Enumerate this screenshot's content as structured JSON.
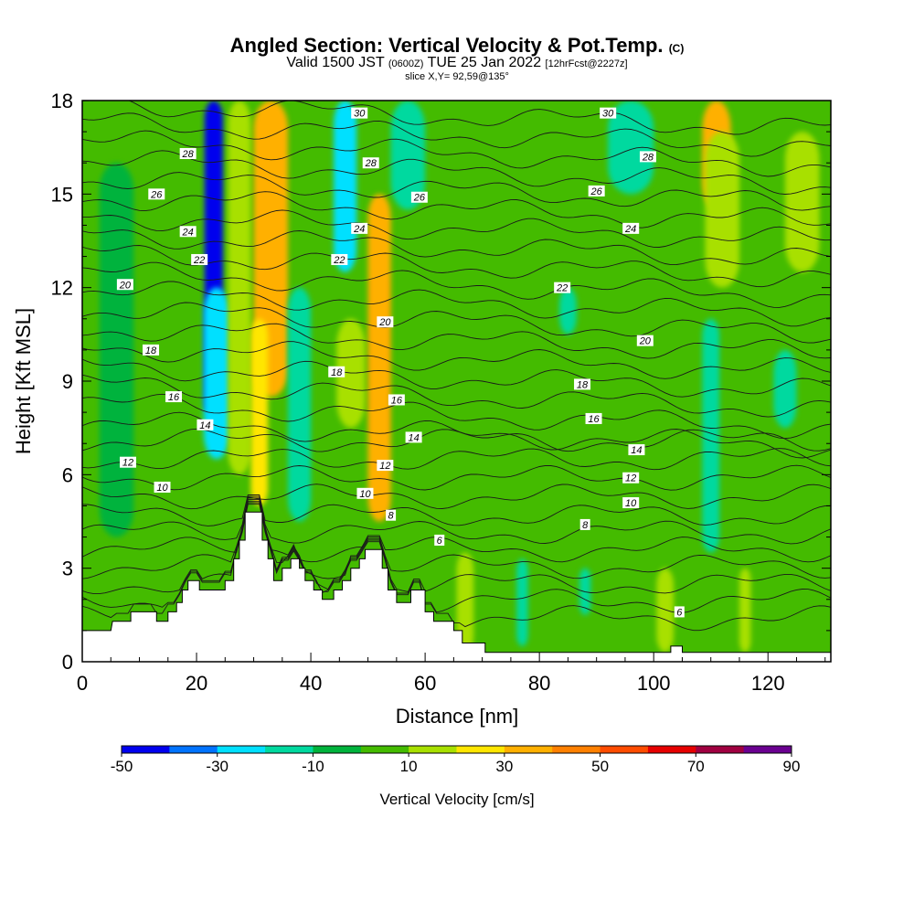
{
  "header": {
    "title": "Angled Section: Vertical Velocity & Pot.Temp.",
    "title_mark": "(C)",
    "valid_prefix": "Valid 1500 JST",
    "valid_utc": "(0600Z)",
    "valid_date": "TUE 25 Jan 2022",
    "forecast": "[12hrFcst@2227z]",
    "slice": "slice X,Y= 92,59@135°"
  },
  "chart_data": {
    "type": "heatmap",
    "xlabel": "Distance [nm]",
    "ylabel": "Height [Kft MSL]",
    "xlim": [
      0,
      131
    ],
    "ylim": [
      0,
      18
    ],
    "x_ticks": [
      0,
      20,
      40,
      60,
      80,
      100,
      120
    ],
    "y_ticks": [
      0,
      3,
      6,
      9,
      12,
      15,
      18
    ],
    "colorbar": {
      "label": "Vertical Velocity [cm/s]",
      "ticks": [
        -50,
        -30,
        -10,
        10,
        30,
        50,
        70,
        90
      ],
      "bins": [
        -50,
        -40,
        -30,
        -20,
        -10,
        0,
        10,
        20,
        30,
        40,
        50,
        60,
        70,
        80,
        90
      ],
      "colors": [
        "#0000ee",
        "#0073ff",
        "#00e0ff",
        "#00d99f",
        "#00b33c",
        "#44bb00",
        "#a8e000",
        "#ffe600",
        "#ffb000",
        "#ff8000",
        "#ff4c00",
        "#e60000",
        "#a00040",
        "#6a0090"
      ]
    },
    "background_color": "#44bb00",
    "velocity_features": [
      {
        "x": 23,
        "y1": 7.8,
        "y2": 18,
        "w": 3.2,
        "v": -45
      },
      {
        "x": 23.5,
        "y1": 6.5,
        "y2": 12,
        "w": 4.5,
        "v": -25
      },
      {
        "x": 27.5,
        "y1": 6.0,
        "y2": 18,
        "w": 4,
        "v": 15
      },
      {
        "x": 33,
        "y1": 8.5,
        "y2": 18,
        "w": 6,
        "v": 35
      },
      {
        "x": 31,
        "y1": 5.0,
        "y2": 11,
        "w": 3,
        "v": 25
      },
      {
        "x": 38,
        "y1": 4.5,
        "y2": 12,
        "w": 4,
        "v": -15
      },
      {
        "x": 46,
        "y1": 12.5,
        "y2": 18,
        "w": 4,
        "v": -30
      },
      {
        "x": 47,
        "y1": 7.5,
        "y2": 11,
        "w": 5,
        "v": 15
      },
      {
        "x": 52,
        "y1": 7.0,
        "y2": 12.5,
        "w": 2.2,
        "v": 65
      },
      {
        "x": 52,
        "y1": 4.5,
        "y2": 15,
        "w": 4,
        "v": 35
      },
      {
        "x": 57,
        "y1": 14.5,
        "y2": 18,
        "w": 6,
        "v": -15
      },
      {
        "x": 6,
        "y1": 4.0,
        "y2": 16,
        "w": 6,
        "v": -5
      },
      {
        "x": 111,
        "y1": 14.5,
        "y2": 18,
        "w": 5,
        "v": 30
      },
      {
        "x": 112,
        "y1": 12,
        "y2": 17,
        "w": 6,
        "v": 15
      },
      {
        "x": 126,
        "y1": 12.5,
        "y2": 17,
        "w": 6,
        "v": 15
      },
      {
        "x": 96,
        "y1": 15,
        "y2": 18,
        "w": 8,
        "v": -15
      },
      {
        "x": 110,
        "y1": 3.5,
        "y2": 11,
        "w": 3,
        "v": -15
      },
      {
        "x": 123,
        "y1": 7.5,
        "y2": 10,
        "w": 4,
        "v": -15
      },
      {
        "x": 85,
        "y1": 10.5,
        "y2": 12,
        "w": 3,
        "v": -15
      },
      {
        "x": 67,
        "y1": 0.3,
        "y2": 3.5,
        "w": 3,
        "v": 15
      },
      {
        "x": 88,
        "y1": 1.5,
        "y2": 3.0,
        "w": 2,
        "v": -15
      },
      {
        "x": 102,
        "y1": 0.3,
        "y2": 3,
        "w": 3,
        "v": 15
      },
      {
        "x": 116,
        "y1": 0.3,
        "y2": 3,
        "w": 2,
        "v": 15
      },
      {
        "x": 77,
        "y1": 0.5,
        "y2": 3.3,
        "w": 2,
        "v": -15
      }
    ],
    "isotherm_levels": [
      2,
      3,
      4,
      5,
      6,
      7,
      8,
      9,
      10,
      11,
      12,
      13,
      14,
      15,
      16,
      17,
      18,
      19,
      20,
      21,
      22,
      23,
      24,
      25,
      26,
      27,
      28,
      29,
      30
    ],
    "isotherm_labels": [
      {
        "text": "30",
        "x": 48.5,
        "y": 17.6
      },
      {
        "text": "30",
        "x": 92,
        "y": 17.6
      },
      {
        "text": "28",
        "x": 18.5,
        "y": 16.3
      },
      {
        "text": "28",
        "x": 50.5,
        "y": 16.0
      },
      {
        "text": "28",
        "x": 99,
        "y": 16.2
      },
      {
        "text": "26",
        "x": 13,
        "y": 15.0
      },
      {
        "text": "26",
        "x": 59,
        "y": 14.9
      },
      {
        "text": "26",
        "x": 90,
        "y": 15.1
      },
      {
        "text": "24",
        "x": 18.5,
        "y": 13.8
      },
      {
        "text": "24",
        "x": 48.5,
        "y": 13.9
      },
      {
        "text": "24",
        "x": 96,
        "y": 13.9
      },
      {
        "text": "22",
        "x": 20.5,
        "y": 12.9
      },
      {
        "text": "22",
        "x": 45,
        "y": 12.9
      },
      {
        "text": "22",
        "x": 84,
        "y": 12.0
      },
      {
        "text": "20",
        "x": 7.5,
        "y": 12.1
      },
      {
        "text": "20",
        "x": 53,
        "y": 10.9
      },
      {
        "text": "20",
        "x": 98.5,
        "y": 10.3
      },
      {
        "text": "18",
        "x": 12,
        "y": 10.0
      },
      {
        "text": "18",
        "x": 44.5,
        "y": 9.3
      },
      {
        "text": "18",
        "x": 87.5,
        "y": 8.9
      },
      {
        "text": "16",
        "x": 16,
        "y": 8.5
      },
      {
        "text": "16",
        "x": 55,
        "y": 8.4
      },
      {
        "text": "16",
        "x": 89.5,
        "y": 7.8
      },
      {
        "text": "14",
        "x": 21.5,
        "y": 7.6
      },
      {
        "text": "14",
        "x": 58,
        "y": 7.2
      },
      {
        "text": "14",
        "x": 97,
        "y": 6.8
      },
      {
        "text": "12",
        "x": 8,
        "y": 6.4
      },
      {
        "text": "12",
        "x": 53,
        "y": 6.3
      },
      {
        "text": "12",
        "x": 96,
        "y": 5.9
      },
      {
        "text": "10",
        "x": 14,
        "y": 5.6
      },
      {
        "text": "10",
        "x": 49.5,
        "y": 5.4
      },
      {
        "text": "10",
        "x": 96,
        "y": 5.1
      },
      {
        "text": "8",
        "x": 54,
        "y": 4.7
      },
      {
        "text": "8",
        "x": 88,
        "y": 4.4
      },
      {
        "text": "6",
        "x": 62.5,
        "y": 3.9
      },
      {
        "text": "6",
        "x": 104.5,
        "y": 1.6
      }
    ],
    "terrain_profile": [
      [
        0,
        1.0
      ],
      [
        5,
        1.0
      ],
      [
        5.3,
        1.3
      ],
      [
        8.5,
        1.3
      ],
      [
        8.5,
        1.6
      ],
      [
        13,
        1.6
      ],
      [
        13,
        1.3
      ],
      [
        15,
        1.3
      ],
      [
        15,
        1.6
      ],
      [
        16.5,
        1.6
      ],
      [
        16.5,
        1.9
      ],
      [
        17.5,
        1.9
      ],
      [
        17.5,
        2.3
      ],
      [
        18.5,
        2.3
      ],
      [
        18.5,
        2.6
      ],
      [
        20.5,
        2.6
      ],
      [
        20.5,
        2.3
      ],
      [
        25,
        2.3
      ],
      [
        25,
        2.6
      ],
      [
        26.5,
        2.6
      ],
      [
        26.5,
        3.3
      ],
      [
        27.5,
        3.3
      ],
      [
        27.5,
        3.9
      ],
      [
        28.5,
        3.9
      ],
      [
        28.5,
        4.8
      ],
      [
        31.5,
        4.8
      ],
      [
        31.5,
        3.9
      ],
      [
        32.5,
        3.9
      ],
      [
        32.5,
        3.3
      ],
      [
        33.5,
        3.3
      ],
      [
        33.5,
        2.6
      ],
      [
        35,
        2.6
      ],
      [
        35,
        3.0
      ],
      [
        36.5,
        3.0
      ],
      [
        36.5,
        3.3
      ],
      [
        38,
        3.3
      ],
      [
        38,
        3.0
      ],
      [
        39,
        3.0
      ],
      [
        39,
        2.6
      ],
      [
        40.5,
        2.6
      ],
      [
        40.5,
        2.3
      ],
      [
        42,
        2.3
      ],
      [
        42,
        2.0
      ],
      [
        44,
        2.0
      ],
      [
        44,
        2.3
      ],
      [
        45.5,
        2.3
      ],
      [
        45.5,
        2.6
      ],
      [
        47,
        2.6
      ],
      [
        47,
        3.0
      ],
      [
        48.5,
        3.0
      ],
      [
        48.5,
        3.3
      ],
      [
        49.5,
        3.3
      ],
      [
        49.5,
        3.6
      ],
      [
        52.5,
        3.6
      ],
      [
        52.5,
        3.0
      ],
      [
        53.5,
        3.0
      ],
      [
        53.5,
        2.3
      ],
      [
        55,
        2.3
      ],
      [
        55,
        1.9
      ],
      [
        57.5,
        1.9
      ],
      [
        57.5,
        2.3
      ],
      [
        60,
        2.3
      ],
      [
        60,
        1.6
      ],
      [
        61.5,
        1.6
      ],
      [
        61.5,
        1.3
      ],
      [
        65,
        1.3
      ],
      [
        65,
        1.0
      ],
      [
        66.5,
        1.0
      ],
      [
        66.5,
        0.6
      ],
      [
        70.5,
        0.6
      ],
      [
        70.5,
        0.3
      ],
      [
        103,
        0.3
      ],
      [
        103,
        0.5
      ],
      [
        105,
        0.5
      ],
      [
        105,
        0.3
      ],
      [
        131,
        0.3
      ]
    ]
  }
}
